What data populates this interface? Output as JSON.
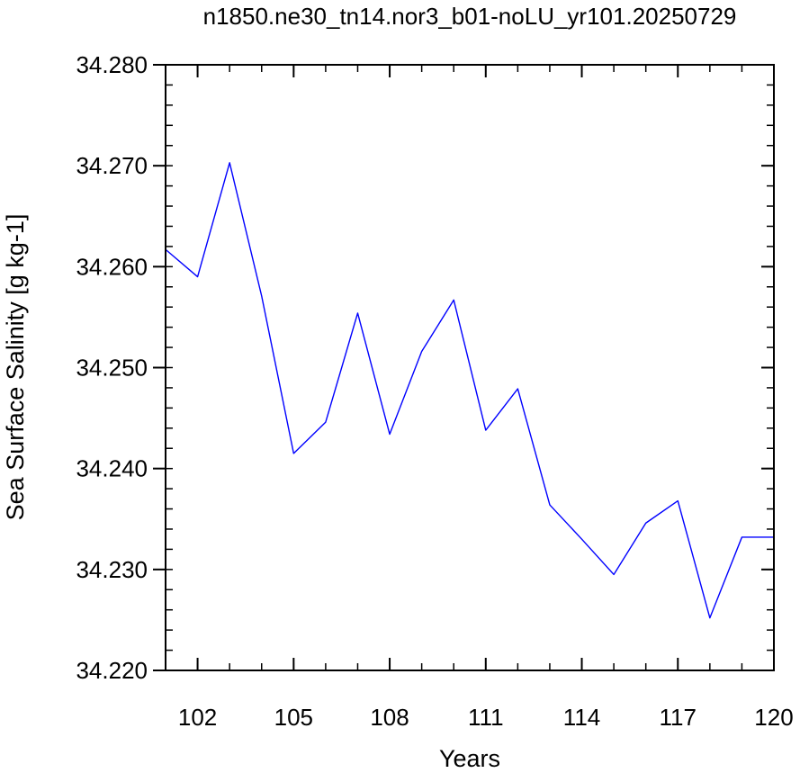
{
  "chart_data": {
    "type": "line",
    "title": "n1850.ne30_tn14.nor3_b01-noLU_yr101.20250729",
    "xlabel": "Years",
    "ylabel": "Sea Surface Salinity [g kg-1]",
    "xlim": [
      101,
      120
    ],
    "ylim": [
      34.22,
      34.28
    ],
    "x_ticks": [
      102,
      105,
      108,
      111,
      114,
      117,
      120
    ],
    "x_tick_labels": [
      "102",
      "105",
      "108",
      "111",
      "114",
      "117",
      "120"
    ],
    "x_minor_step": 1,
    "y_ticks": [
      34.22,
      34.23,
      34.24,
      34.25,
      34.26,
      34.27,
      34.28
    ],
    "y_tick_labels": [
      "34.220",
      "34.230",
      "34.240",
      "34.250",
      "34.260",
      "34.270",
      "34.280"
    ],
    "y_minor_step": 0.002,
    "grid": false,
    "line_color": "#0000ff",
    "series": [
      {
        "x": [
          101,
          102,
          103,
          104,
          105,
          106,
          107,
          108,
          109,
          110,
          111,
          112,
          113,
          114,
          115,
          116,
          117,
          118,
          119,
          120
        ],
        "y": [
          34.2617,
          34.259,
          34.2703,
          34.2571,
          34.2415,
          34.2446,
          34.2554,
          34.2434,
          34.2516,
          34.2567,
          34.2438,
          34.2479,
          34.2364,
          34.233,
          34.2295,
          34.2346,
          34.2368,
          34.2252,
          34.2332,
          34.2332
        ]
      }
    ]
  }
}
